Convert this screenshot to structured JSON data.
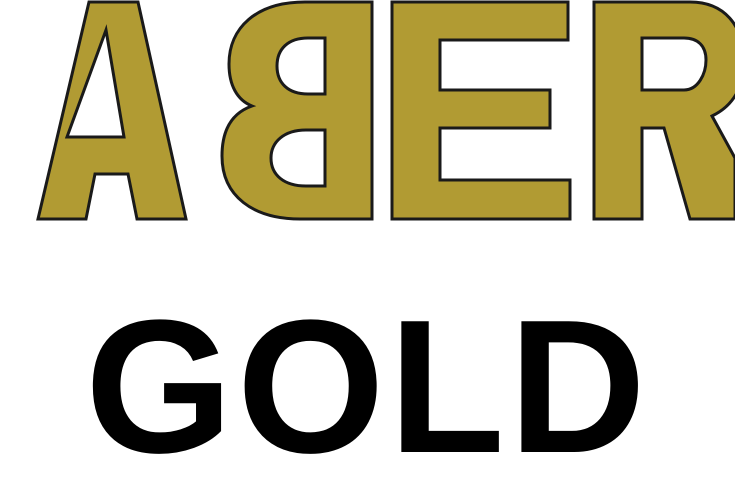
{
  "logo": {
    "wordmark": "ABER",
    "subtitle": "GOLD",
    "colors": {
      "gold_fill": "#b19b33",
      "outline": "#1a1a1a",
      "subtitle": "#000000",
      "background": "#ffffff"
    }
  }
}
